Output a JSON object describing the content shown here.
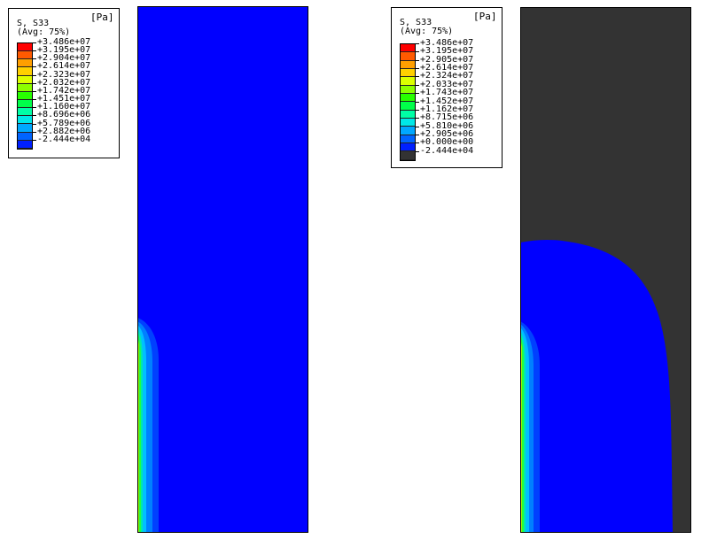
{
  "left_legend": {
    "title": "S, S33",
    "unit": "[Pa]",
    "subtitle": "(Avg: 75%)",
    "labels": [
      "+3.486e+07",
      "+3.195e+07",
      "+2.904e+07",
      "+2.614e+07",
      "+2.323e+07",
      "+2.032e+07",
      "+1.742e+07",
      "+1.451e+07",
      "+1.160e+07",
      "+8.696e+06",
      "+5.789e+06",
      "+2.882e+06",
      "-2.444e+04"
    ],
    "colors": [
      "#ff0000",
      "#ff5a00",
      "#ff9f00",
      "#ffd000",
      "#dcff00",
      "#8cff00",
      "#28ff00",
      "#00ff4a",
      "#00ffa6",
      "#00e8e8",
      "#00a8ff",
      "#0064ff",
      "#0020ff"
    ]
  },
  "right_legend": {
    "title": "S, S33",
    "unit": "[Pa]",
    "subtitle": "(Avg: 75%)",
    "labels": [
      "+3.486e+07",
      "+3.195e+07",
      "+2.905e+07",
      "+2.614e+07",
      "+2.324e+07",
      "+2.033e+07",
      "+1.743e+07",
      "+1.452e+07",
      "+1.162e+07",
      "+8.715e+06",
      "+5.810e+06",
      "+2.905e+06",
      "+0.000e+00",
      "-2.444e+04"
    ],
    "colors": [
      "#ff0000",
      "#ff5a00",
      "#ff9f00",
      "#ffd000",
      "#dcff00",
      "#8cff00",
      "#28ff00",
      "#00ff4a",
      "#00ffa6",
      "#00e8e8",
      "#00a8ff",
      "#0064ff",
      "#0020ff",
      "#333333"
    ]
  }
}
